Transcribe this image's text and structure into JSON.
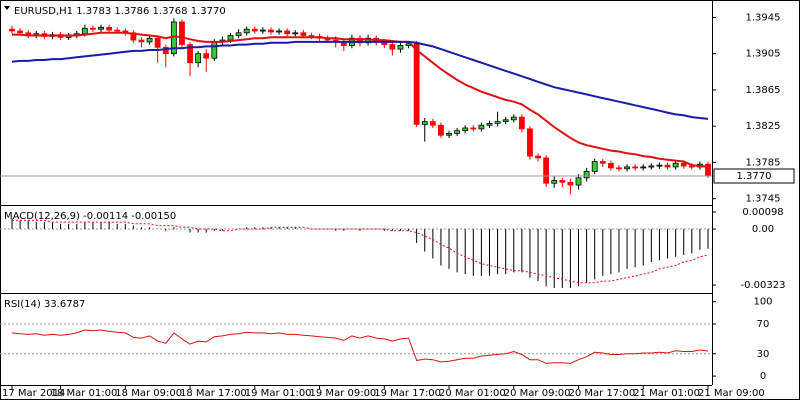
{
  "chart_data": [
    {
      "type": "candlestick",
      "title": "EURUSD,H1  1.3783 1.3786 1.3768 1.3770",
      "categories": [
        "17 Mar 2014",
        null,
        null,
        null,
        null,
        null,
        "18 Mar 01:00",
        null,
        null,
        null,
        null,
        null,
        null,
        null,
        "18 Mar 09:00",
        null,
        null,
        null,
        null,
        null,
        null,
        null,
        "18 Mar 17:00",
        null,
        null,
        null,
        null,
        null,
        null,
        null,
        "19 Mar 01:00",
        null,
        null,
        null,
        null,
        null,
        null,
        null,
        "19 Mar 09:00",
        null,
        null,
        null,
        null,
        null,
        null,
        null,
        "19 Mar 17:00",
        null,
        null,
        null,
        null,
        null,
        null,
        null,
        "20 Mar 01:00",
        null,
        null,
        null,
        null,
        null,
        null,
        null,
        "20 Mar 09:00",
        null,
        null,
        null,
        null,
        null,
        null,
        null,
        "20 Mar 17:00",
        null,
        null,
        null,
        null,
        null,
        null,
        null,
        "21 Mar 01:00",
        null,
        null,
        null,
        null,
        null,
        null,
        null,
        "21 Mar 09:00"
      ],
      "open": [
        1.3932,
        1.393,
        1.3928,
        1.3925,
        1.3927,
        1.3924,
        1.3926,
        1.3923,
        1.3925,
        1.3927,
        1.3933,
        1.3932,
        1.3934,
        1.3931,
        1.393,
        1.3928,
        1.392,
        1.3918,
        1.3922,
        1.3912,
        1.3905,
        1.394,
        1.3915,
        1.3895,
        1.3905,
        1.39,
        1.3918,
        1.392,
        1.3925,
        1.3928,
        1.3932,
        1.393,
        1.3931,
        1.3929,
        1.393,
        1.3927,
        1.3928,
        1.3925,
        1.3924,
        1.3922,
        1.392,
        1.3918,
        1.3914,
        1.3922,
        1.3917,
        1.3922,
        1.3918,
        1.3915,
        1.391,
        1.3914,
        1.3916,
        1.3827,
        1.383,
        1.3826,
        1.3815,
        1.3817,
        1.382,
        1.3823,
        1.3822,
        1.3826,
        1.3828,
        1.383,
        1.3832,
        1.3835,
        1.3822,
        1.3792,
        1.379,
        1.3762,
        1.3765,
        1.3763,
        1.376,
        1.3768,
        1.3775,
        1.3786,
        1.3784,
        1.3779,
        1.3778,
        1.378,
        1.3779,
        1.378,
        1.3781,
        1.3782,
        1.378,
        1.3784,
        1.3781,
        1.378,
        1.3783
      ],
      "high": [
        1.3936,
        1.3933,
        1.3931,
        1.393,
        1.393,
        1.3929,
        1.3929,
        1.3928,
        1.393,
        1.3937,
        1.3936,
        1.3937,
        1.3937,
        1.3934,
        1.3933,
        1.3931,
        1.3923,
        1.3925,
        1.3925,
        1.3915,
        1.3944,
        1.3943,
        1.3918,
        1.3908,
        1.391,
        1.3921,
        1.3924,
        1.3928,
        1.3932,
        1.3935,
        1.3935,
        1.3934,
        1.3934,
        1.3933,
        1.3933,
        1.3931,
        1.3931,
        1.3928,
        1.3927,
        1.3925,
        1.3924,
        1.3921,
        1.3926,
        1.3925,
        1.3926,
        1.3925,
        1.3921,
        1.3918,
        1.3917,
        1.3919,
        1.3919,
        1.3834,
        1.3833,
        1.3829,
        1.382,
        1.3823,
        1.3826,
        1.3826,
        1.3829,
        1.3831,
        1.3841,
        1.3835,
        1.3838,
        1.3838,
        1.3825,
        1.3795,
        1.3793,
        1.377,
        1.3768,
        1.3767,
        1.3772,
        1.3779,
        1.3789,
        1.3789,
        1.3787,
        1.3782,
        1.3783,
        1.3783,
        1.3783,
        1.3784,
        1.3785,
        1.3785,
        1.3787,
        1.3787,
        1.3784,
        1.3786,
        1.3786
      ],
      "low": [
        1.3927,
        1.3925,
        1.3922,
        1.3922,
        1.3921,
        1.3921,
        1.392,
        1.392,
        1.3922,
        1.3924,
        1.3929,
        1.3929,
        1.3928,
        1.3927,
        1.3925,
        1.3917,
        1.3912,
        1.3915,
        1.3895,
        1.389,
        1.3902,
        1.391,
        1.388,
        1.389,
        1.3885,
        1.3897,
        1.3915,
        1.3917,
        1.3922,
        1.3925,
        1.3927,
        1.3927,
        1.3926,
        1.3926,
        1.3924,
        1.3924,
        1.3922,
        1.3921,
        1.3919,
        1.3917,
        1.3912,
        1.3908,
        1.3911,
        1.3913,
        1.3914,
        1.3914,
        1.3911,
        1.3903,
        1.3906,
        1.3911,
        1.3824,
        1.3808,
        1.3823,
        1.3812,
        1.3812,
        1.3814,
        1.3817,
        1.3819,
        1.3819,
        1.3823,
        1.3825,
        1.3827,
        1.3829,
        1.3818,
        1.3788,
        1.3786,
        1.3758,
        1.3757,
        1.3758,
        1.375,
        1.3755,
        1.3764,
        1.3772,
        1.378,
        1.3776,
        1.3775,
        1.3775,
        1.3776,
        1.3776,
        1.3777,
        1.3778,
        1.3777,
        1.3777,
        1.3778,
        1.3777,
        1.3777,
        1.3768
      ],
      "close": [
        1.393,
        1.3928,
        1.3925,
        1.3927,
        1.3924,
        1.3926,
        1.3923,
        1.3925,
        1.3927,
        1.3933,
        1.3932,
        1.3934,
        1.3931,
        1.393,
        1.3928,
        1.392,
        1.3918,
        1.3922,
        1.3912,
        1.3905,
        1.394,
        1.3915,
        1.3895,
        1.3905,
        1.39,
        1.3918,
        1.392,
        1.3925,
        1.3928,
        1.3932,
        1.393,
        1.3931,
        1.3929,
        1.393,
        1.3927,
        1.3928,
        1.3925,
        1.3924,
        1.3922,
        1.392,
        1.3918,
        1.3914,
        1.3922,
        1.3917,
        1.3922,
        1.3918,
        1.3915,
        1.391,
        1.3914,
        1.3916,
        1.3827,
        1.383,
        1.3826,
        1.3815,
        1.3817,
        1.382,
        1.3823,
        1.3822,
        1.3826,
        1.3828,
        1.383,
        1.3832,
        1.3835,
        1.3822,
        1.3792,
        1.379,
        1.3762,
        1.3765,
        1.3763,
        1.376,
        1.3768,
        1.3775,
        1.3786,
        1.3784,
        1.3779,
        1.3778,
        1.378,
        1.3779,
        1.378,
        1.3781,
        1.3782,
        1.378,
        1.3784,
        1.3781,
        1.378,
        1.3783,
        1.377
      ],
      "up_color": "#32cd32",
      "down_color": "#ff0000",
      "series": [
        {
          "color": "#dd1111",
          "values": [
            1.3926,
            1.3926,
            1.3925,
            1.3925,
            1.3925,
            1.3925,
            1.3925,
            1.3925,
            1.3925,
            1.3926,
            1.3927,
            1.3928,
            1.3928,
            1.3928,
            1.3928,
            1.3927,
            1.3926,
            1.3925,
            1.3924,
            1.3922,
            1.3924,
            1.3923,
            1.3921,
            1.3919,
            1.3918,
            1.3918,
            1.3918,
            1.3919,
            1.392,
            1.3921,
            1.3922,
            1.3922,
            1.3923,
            1.3923,
            1.3923,
            1.3923,
            1.3923,
            1.3923,
            1.3923,
            1.3922,
            1.3922,
            1.3921,
            1.3921,
            1.3921,
            1.3921,
            1.392,
            1.392,
            1.3919,
            1.3918,
            1.3918,
            1.3909,
            1.3902,
            1.3895,
            1.3888,
            1.3882,
            1.3876,
            1.3871,
            1.3867,
            1.3863,
            1.386,
            1.3857,
            1.3854,
            1.3852,
            1.3849,
            1.3843,
            1.3838,
            1.3831,
            1.3824,
            1.3818,
            1.3812,
            1.3807,
            1.3804,
            1.3802,
            1.38,
            1.3798,
            1.3797,
            1.3795,
            1.3794,
            1.3792,
            1.3791,
            1.3789,
            1.3788,
            1.3787,
            1.3786,
            1.3782,
            1.3781,
            1.378
          ]
        },
        {
          "color": "#1c1ca8",
          "values": [
            1.3896,
            1.3897,
            1.3897,
            1.3898,
            1.3898,
            1.3899,
            1.3899,
            1.39,
            1.3901,
            1.3902,
            1.3903,
            1.3904,
            1.3905,
            1.3906,
            1.3907,
            1.3908,
            1.3908,
            1.3909,
            1.3909,
            1.391,
            1.3911,
            1.3911,
            1.3912,
            1.3912,
            1.3913,
            1.3913,
            1.3914,
            1.3914,
            1.3915,
            1.3915,
            1.3916,
            1.3916,
            1.3917,
            1.3917,
            1.3917,
            1.3918,
            1.3918,
            1.3918,
            1.3918,
            1.3918,
            1.3918,
            1.3918,
            1.3918,
            1.3918,
            1.3918,
            1.3918,
            1.3918,
            1.3918,
            1.3918,
            1.3918,
            1.3917,
            1.3915,
            1.3913,
            1.391,
            1.3907,
            1.3904,
            1.3901,
            1.3898,
            1.3895,
            1.3892,
            1.3889,
            1.3886,
            1.3883,
            1.388,
            1.3877,
            1.3874,
            1.3871,
            1.3868,
            1.3866,
            1.3864,
            1.3862,
            1.386,
            1.3858,
            1.3856,
            1.3854,
            1.3852,
            1.385,
            1.3848,
            1.3846,
            1.3844,
            1.3842,
            1.384,
            1.3838,
            1.3837,
            1.3835,
            1.3834,
            1.3833
          ]
        }
      ],
      "current_price": {
        "value": 1.377,
        "label": "1.3770"
      },
      "ylim": [
        1.3738,
        1.3962
      ],
      "yticks": [
        1.3945,
        1.3905,
        1.3865,
        1.3825,
        1.3785,
        1.3745
      ]
    },
    {
      "type": "macd",
      "title": "MACD(12,26,9) -0.00114 -0.00150",
      "series": [
        {
          "color": "#000000",
          "values": [
            0.0006,
            0.0005,
            0.0005,
            0.0004,
            0.0004,
            0.0004,
            0.0003,
            0.0003,
            0.0003,
            0.0004,
            0.0004,
            0.0004,
            0.0004,
            0.0003,
            0.0003,
            0.0002,
            0.0001,
            0.0001,
            0.0,
            -0.0001,
            0.0001,
            0.0,
            -0.0002,
            -0.0002,
            -0.0002,
            -0.0001,
            -0.0001,
            0.0,
            0.0,
            0.0001,
            0.0001,
            0.0001,
            0.0001,
            0.0001,
            0.0001,
            0.0001,
            0.0,
            0.0,
            0.0,
            0.0,
            -0.0001,
            -0.0001,
            0.0,
            -0.0001,
            0.0,
            0.0,
            -0.0001,
            -0.0001,
            -0.0001,
            -0.0001,
            -0.0008,
            -0.0013,
            -0.0017,
            -0.0021,
            -0.0023,
            -0.0025,
            -0.0026,
            -0.0027,
            -0.0027,
            -0.0027,
            -0.0026,
            -0.0026,
            -0.0025,
            -0.0025,
            -0.0028,
            -0.003,
            -0.0033,
            -0.0034,
            -0.0034,
            -0.0034,
            -0.0033,
            -0.0031,
            -0.0029,
            -0.0027,
            -0.0026,
            -0.0025,
            -0.0023,
            -0.0022,
            -0.0021,
            -0.0019,
            -0.0018,
            -0.0017,
            -0.0016,
            -0.0015,
            -0.0014,
            -0.0012,
            -0.00114
          ]
        },
        {
          "color": "#dd1111",
          "values": [
            0.0005,
            0.0005,
            0.0005,
            0.0005,
            0.0005,
            0.0004,
            0.0004,
            0.0004,
            0.0004,
            0.0004,
            0.0004,
            0.0004,
            0.0004,
            0.0004,
            0.0004,
            0.0003,
            0.0003,
            0.0003,
            0.0002,
            0.0002,
            0.0002,
            0.0001,
            0.0001,
            0.0,
            0.0,
            0.0,
            -0.0001,
            -0.0001,
            0.0,
            0.0,
            0.0,
            0.0,
            0.0001,
            0.0001,
            0.0001,
            0.0001,
            0.0001,
            0.0,
            0.0,
            0.0,
            0.0,
            0.0,
            0.0,
            0.0,
            0.0,
            0.0,
            0.0,
            -0.0001,
            -0.0001,
            -0.0001,
            -0.0002,
            -0.0004,
            -0.0006,
            -0.0009,
            -0.0011,
            -0.0014,
            -0.0016,
            -0.0018,
            -0.002,
            -0.0021,
            -0.0022,
            -0.0023,
            -0.0024,
            -0.0024,
            -0.0025,
            -0.0026,
            -0.0027,
            -0.0028,
            -0.0029,
            -0.003,
            -0.0031,
            -0.0031,
            -0.0031,
            -0.003,
            -0.003,
            -0.0029,
            -0.0028,
            -0.0027,
            -0.0026,
            -0.0025,
            -0.0023,
            -0.0022,
            -0.0021,
            -0.0019,
            -0.0018,
            -0.0016,
            -0.0015
          ]
        }
      ],
      "levels": [
        0
      ],
      "ylim": [
        -0.00363,
        0.00127
      ],
      "yticks": [
        0.00098,
        {
          "value": 0,
          "label": "0.00"
        },
        -0.00323
      ]
    },
    {
      "type": "line",
      "title": "RSI(14) 33.6787",
      "series": [
        {
          "color": "#dd1111",
          "values": [
            58,
            57,
            56,
            57,
            55,
            56,
            55,
            56,
            58,
            62,
            61,
            62,
            60,
            59,
            58,
            52,
            51,
            54,
            47,
            44,
            58,
            50,
            43,
            47,
            46,
            53,
            54,
            56,
            57,
            59,
            58,
            58,
            57,
            58,
            56,
            56,
            55,
            54,
            53,
            52,
            51,
            48,
            54,
            51,
            54,
            51,
            50,
            47,
            50,
            51,
            21,
            23,
            22,
            19,
            20,
            22,
            24,
            24,
            27,
            28,
            29,
            30,
            33,
            29,
            22,
            22,
            17,
            18,
            18,
            17,
            22,
            26,
            32,
            31,
            29,
            29,
            30,
            30,
            31,
            31,
            32,
            31,
            34,
            33,
            33,
            35,
            33.6787
          ]
        }
      ],
      "levels": [
        70,
        30
      ],
      "ylim": [
        -12,
        109
      ],
      "yticks": [
        100,
        70,
        30,
        0
      ]
    }
  ]
}
